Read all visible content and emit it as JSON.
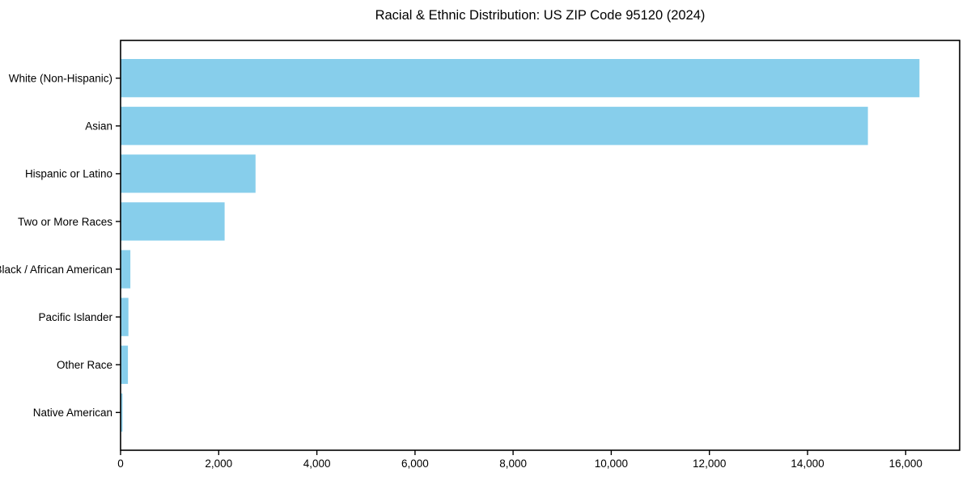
{
  "chart_data": {
    "type": "bar",
    "orientation": "horizontal",
    "title": "Racial & Ethnic Distribution: US ZIP Code 95120 (2024)",
    "categories": [
      "White (Non-Hispanic)",
      "Asian",
      "Hispanic or Latino",
      "Two or More Races",
      "Black / African American",
      "Pacific Islander",
      "Other Race",
      "Native American"
    ],
    "values": [
      16280,
      15230,
      2750,
      2120,
      200,
      160,
      150,
      40
    ],
    "xlabel": "",
    "ylabel": "",
    "xlim": [
      0,
      17100
    ],
    "xticks": [
      {
        "value": 0,
        "label": "0"
      },
      {
        "value": 2000,
        "label": "2,000"
      },
      {
        "value": 4000,
        "label": "4,000"
      },
      {
        "value": 6000,
        "label": "6,000"
      },
      {
        "value": 8000,
        "label": "8,000"
      },
      {
        "value": 10000,
        "label": "10,000"
      },
      {
        "value": 12000,
        "label": "12,000"
      },
      {
        "value": 14000,
        "label": "14,000"
      },
      {
        "value": 16000,
        "label": "16,000"
      }
    ],
    "grid": false,
    "legend": "none",
    "bar_color": "#87CEEB",
    "axis_color": "#000000",
    "text_color": "#000000",
    "background_color": "#ffffff"
  }
}
